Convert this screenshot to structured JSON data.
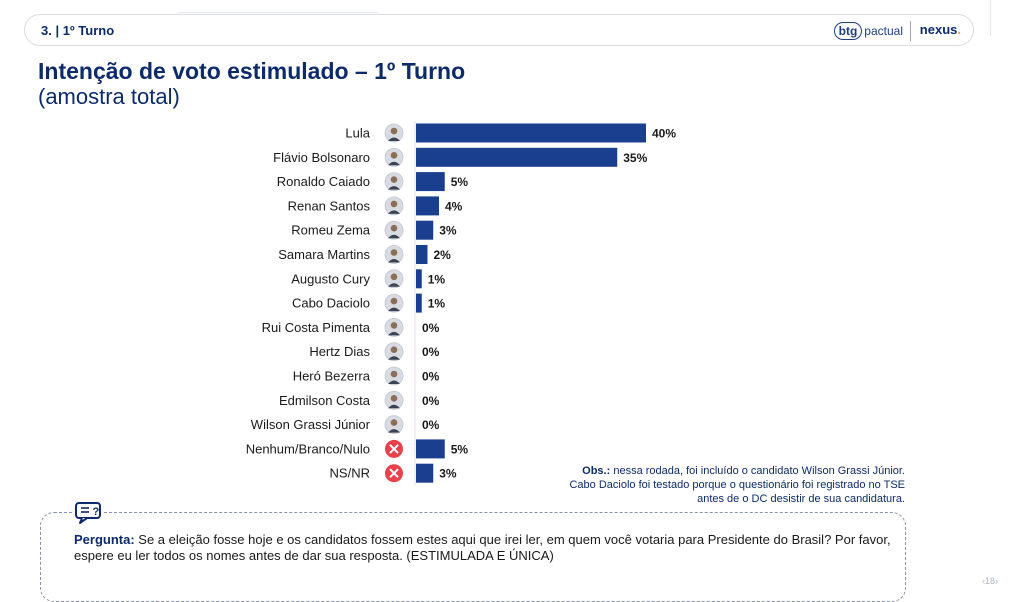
{
  "header": {
    "section": "3. | 1º Turno",
    "brand_btg_circle": "btg",
    "brand_btg_text": "pactual",
    "brand_nexus": "nexus",
    "brand_nexus_dot": "."
  },
  "title": "Intenção de voto estimulado – 1º Turno",
  "subtitle": "(amostra total)",
  "chart_data": {
    "type": "bar",
    "orientation": "horizontal",
    "title": "Intenção de voto estimulado – 1º Turno",
    "subtitle": "(amostra total)",
    "categories": [
      "Lula",
      "Flávio Bolsonaro",
      "Ronaldo Caiado",
      "Renan Santos",
      "Romeu Zema",
      "Samara Martins",
      "Augusto Cury",
      "Cabo Daciolo",
      "Rui Costa Pimenta",
      "Hertz Dias",
      "Heró Bezerra",
      "Edmilson Costa",
      "Wilson Grassi Júnior",
      "Nenhum/Branco/Nulo",
      "NS/NR"
    ],
    "values": [
      40,
      35,
      5,
      4,
      3,
      2,
      1,
      1,
      0,
      0,
      0,
      0,
      0,
      5,
      3
    ],
    "value_labels": [
      "40%",
      "35%",
      "5%",
      "4%",
      "3%",
      "2%",
      "1%",
      "1%",
      "0%",
      "0%",
      "0%",
      "0%",
      "0%",
      "5%",
      "3%"
    ],
    "icons": [
      "avatar",
      "avatar",
      "avatar",
      "avatar",
      "avatar",
      "avatar",
      "avatar",
      "avatar",
      "avatar",
      "avatar",
      "avatar",
      "avatar",
      "avatar",
      "x-circle-icon",
      "x-circle-icon"
    ],
    "unit": "%",
    "grid": false,
    "bar_color": "#1a3f8f"
  },
  "colors": {
    "navy": "#0d2b6b",
    "bar": "#1a3f8f",
    "x_icon": "#e8414b"
  },
  "note": {
    "label": "Obs.:",
    "text": "nessa rodada, foi incluído o candidato Wilson Grassi Júnior. Cabo Daciolo foi testado porque o questionário foi registrado no TSE antes de o DC desistir de sua candidatura."
  },
  "question": {
    "label": "Pergunta:",
    "text": "Se a eleição fosse hoje e os candidatos fossem estes aqui que irei ler, em quem você votaria para Presidente do Brasil? Por favor, espere eu ler todos os nomes antes de dar sua resposta. (ESTIMULADA E ÚNICA)"
  },
  "page_number": "18"
}
